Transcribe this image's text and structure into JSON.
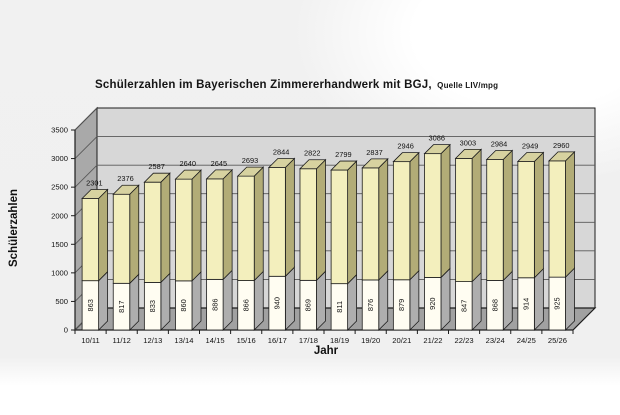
{
  "chart": {
    "title_main": "Schülerzahlen im Bayerischen Zimmererhandwerk mit BGJ,",
    "title_source": "Quelle LIV/mpg"
  },
  "chart_data": {
    "type": "bar",
    "style": "3d-stacked-columns",
    "title": "Schülerzahlen im Bayerischen Zimmererhandwerk mit BGJ, Quelle LIV/mpg",
    "xlabel": "Jahr",
    "ylabel": "Schülerzahlen",
    "ylim": [
      0,
      3500
    ],
    "ytick_step": 500,
    "yticks": [
      0,
      500,
      1000,
      1500,
      2000,
      2500,
      3000,
      3500
    ],
    "grid": true,
    "legend": false,
    "categories": [
      "10/11",
      "11/12",
      "12/13",
      "13/14",
      "14/15",
      "15/16",
      "16/17",
      "17/18",
      "18/19",
      "19/20",
      "20/21",
      "21/22",
      "22/23",
      "23/24",
      "24/25",
      "25/26"
    ],
    "series": [
      {
        "name": "lower-segment",
        "values": [
          863,
          817,
          833,
          860,
          886,
          866,
          940,
          869,
          811,
          876,
          879,
          920,
          847,
          868,
          914,
          925
        ]
      },
      {
        "name": "total",
        "values": [
          2301,
          2376,
          2587,
          2640,
          2645,
          2693,
          2844,
          2822,
          2799,
          2837,
          2946,
          3086,
          3003,
          2984,
          2949,
          2960
        ]
      }
    ],
    "colors": {
      "background": "#f0f0f0",
      "wall_back": "#d7d7d7",
      "wall_side": "#a9a9a9",
      "floor": "#a1a1a1",
      "gridline": "#585858",
      "outline": "#1c1c1c",
      "bar_front_upper": "#f3efbd",
      "bar_side_upper": "#b2ac77",
      "bar_top": "#d7d2a0",
      "bar_front_lower": "#fffdf2",
      "bar_side_lower": "#aeaeae",
      "label_color": "#111111"
    }
  }
}
